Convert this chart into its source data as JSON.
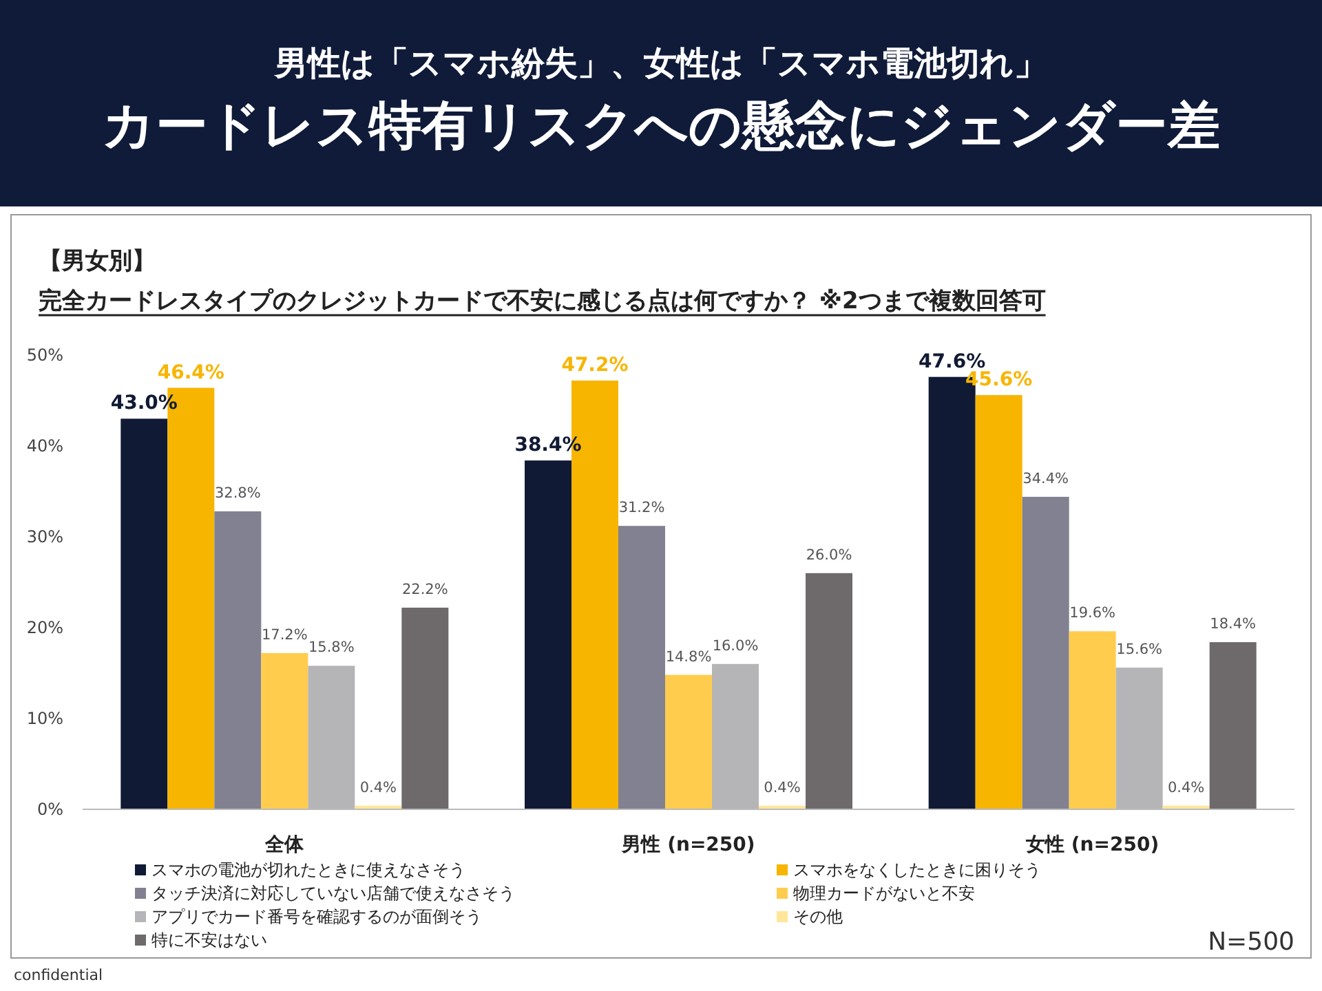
{
  "chart_data": {
    "type": "bar",
    "title": "男性は「スマホ紛失」、女性は「スマホ電池切れ」",
    "subtitle": "カードレス特有リスクへの懸念にジェンダー差",
    "annotations": [
      "【男女別】",
      "完全カードレスタイプのクレジットカードで不安に感じる点は何ですか？ ※2つまで複数回答可",
      "N=500",
      "confidential"
    ],
    "categories": [
      "全体",
      "男性 (n=250)",
      "女性 (n=250)"
    ],
    "ylim": [
      0,
      50
    ],
    "yticks": [
      {
        "value": 0,
        "label": "0%"
      },
      {
        "value": 10,
        "label": "10%"
      },
      {
        "value": 20,
        "label": "20%"
      },
      {
        "value": 30,
        "label": "30%"
      },
      {
        "value": 40,
        "label": "40%"
      },
      {
        "value": 50,
        "label": "50%"
      }
    ],
    "legend": "bottom",
    "series": [
      {
        "name": "スマホの電池が切れたときに使えなさそう",
        "color": "#111a35",
        "values": [
          43.0,
          38.4,
          47.6
        ],
        "value_labels": [
          "43.0%",
          "38.4%",
          "47.6%"
        ]
      },
      {
        "name": "スマホをなくしたときに困りそう",
        "color": "#f7b500",
        "values": [
          46.4,
          47.2,
          45.6
        ],
        "value_labels": [
          "46.4%",
          "47.2%",
          "45.6%"
        ]
      },
      {
        "name": "タッチ決済に対応していない店舗で使えなさそう",
        "color": "#818191",
        "values": [
          32.8,
          31.2,
          34.4
        ],
        "value_labels": [
          "32.8%",
          "31.2%",
          "34.4%"
        ]
      },
      {
        "name": "物理カードがないと不安",
        "color": "#ffcc4d",
        "values": [
          17.2,
          14.8,
          19.6
        ],
        "value_labels": [
          "17.2%",
          "14.8%",
          "19.6%"
        ]
      },
      {
        "name": "アプリでカード番号を確認するのが面倒そう",
        "color": "#b5b5b8",
        "values": [
          15.8,
          16.0,
          15.6
        ],
        "value_labels": [
          "15.8%",
          "16.0%",
          "15.6%"
        ]
      },
      {
        "name": "その他",
        "color": "#ffe699",
        "values": [
          0.4,
          0.4,
          0.4
        ],
        "value_labels": [
          "0.4%",
          "0.4%",
          "0.4%"
        ]
      },
      {
        "name": "特に不安はない",
        "color": "#6e6a6b",
        "values": [
          22.2,
          26.0,
          18.4
        ],
        "value_labels": [
          "22.2%",
          "26.0%",
          "18.4%"
        ]
      }
    ]
  }
}
